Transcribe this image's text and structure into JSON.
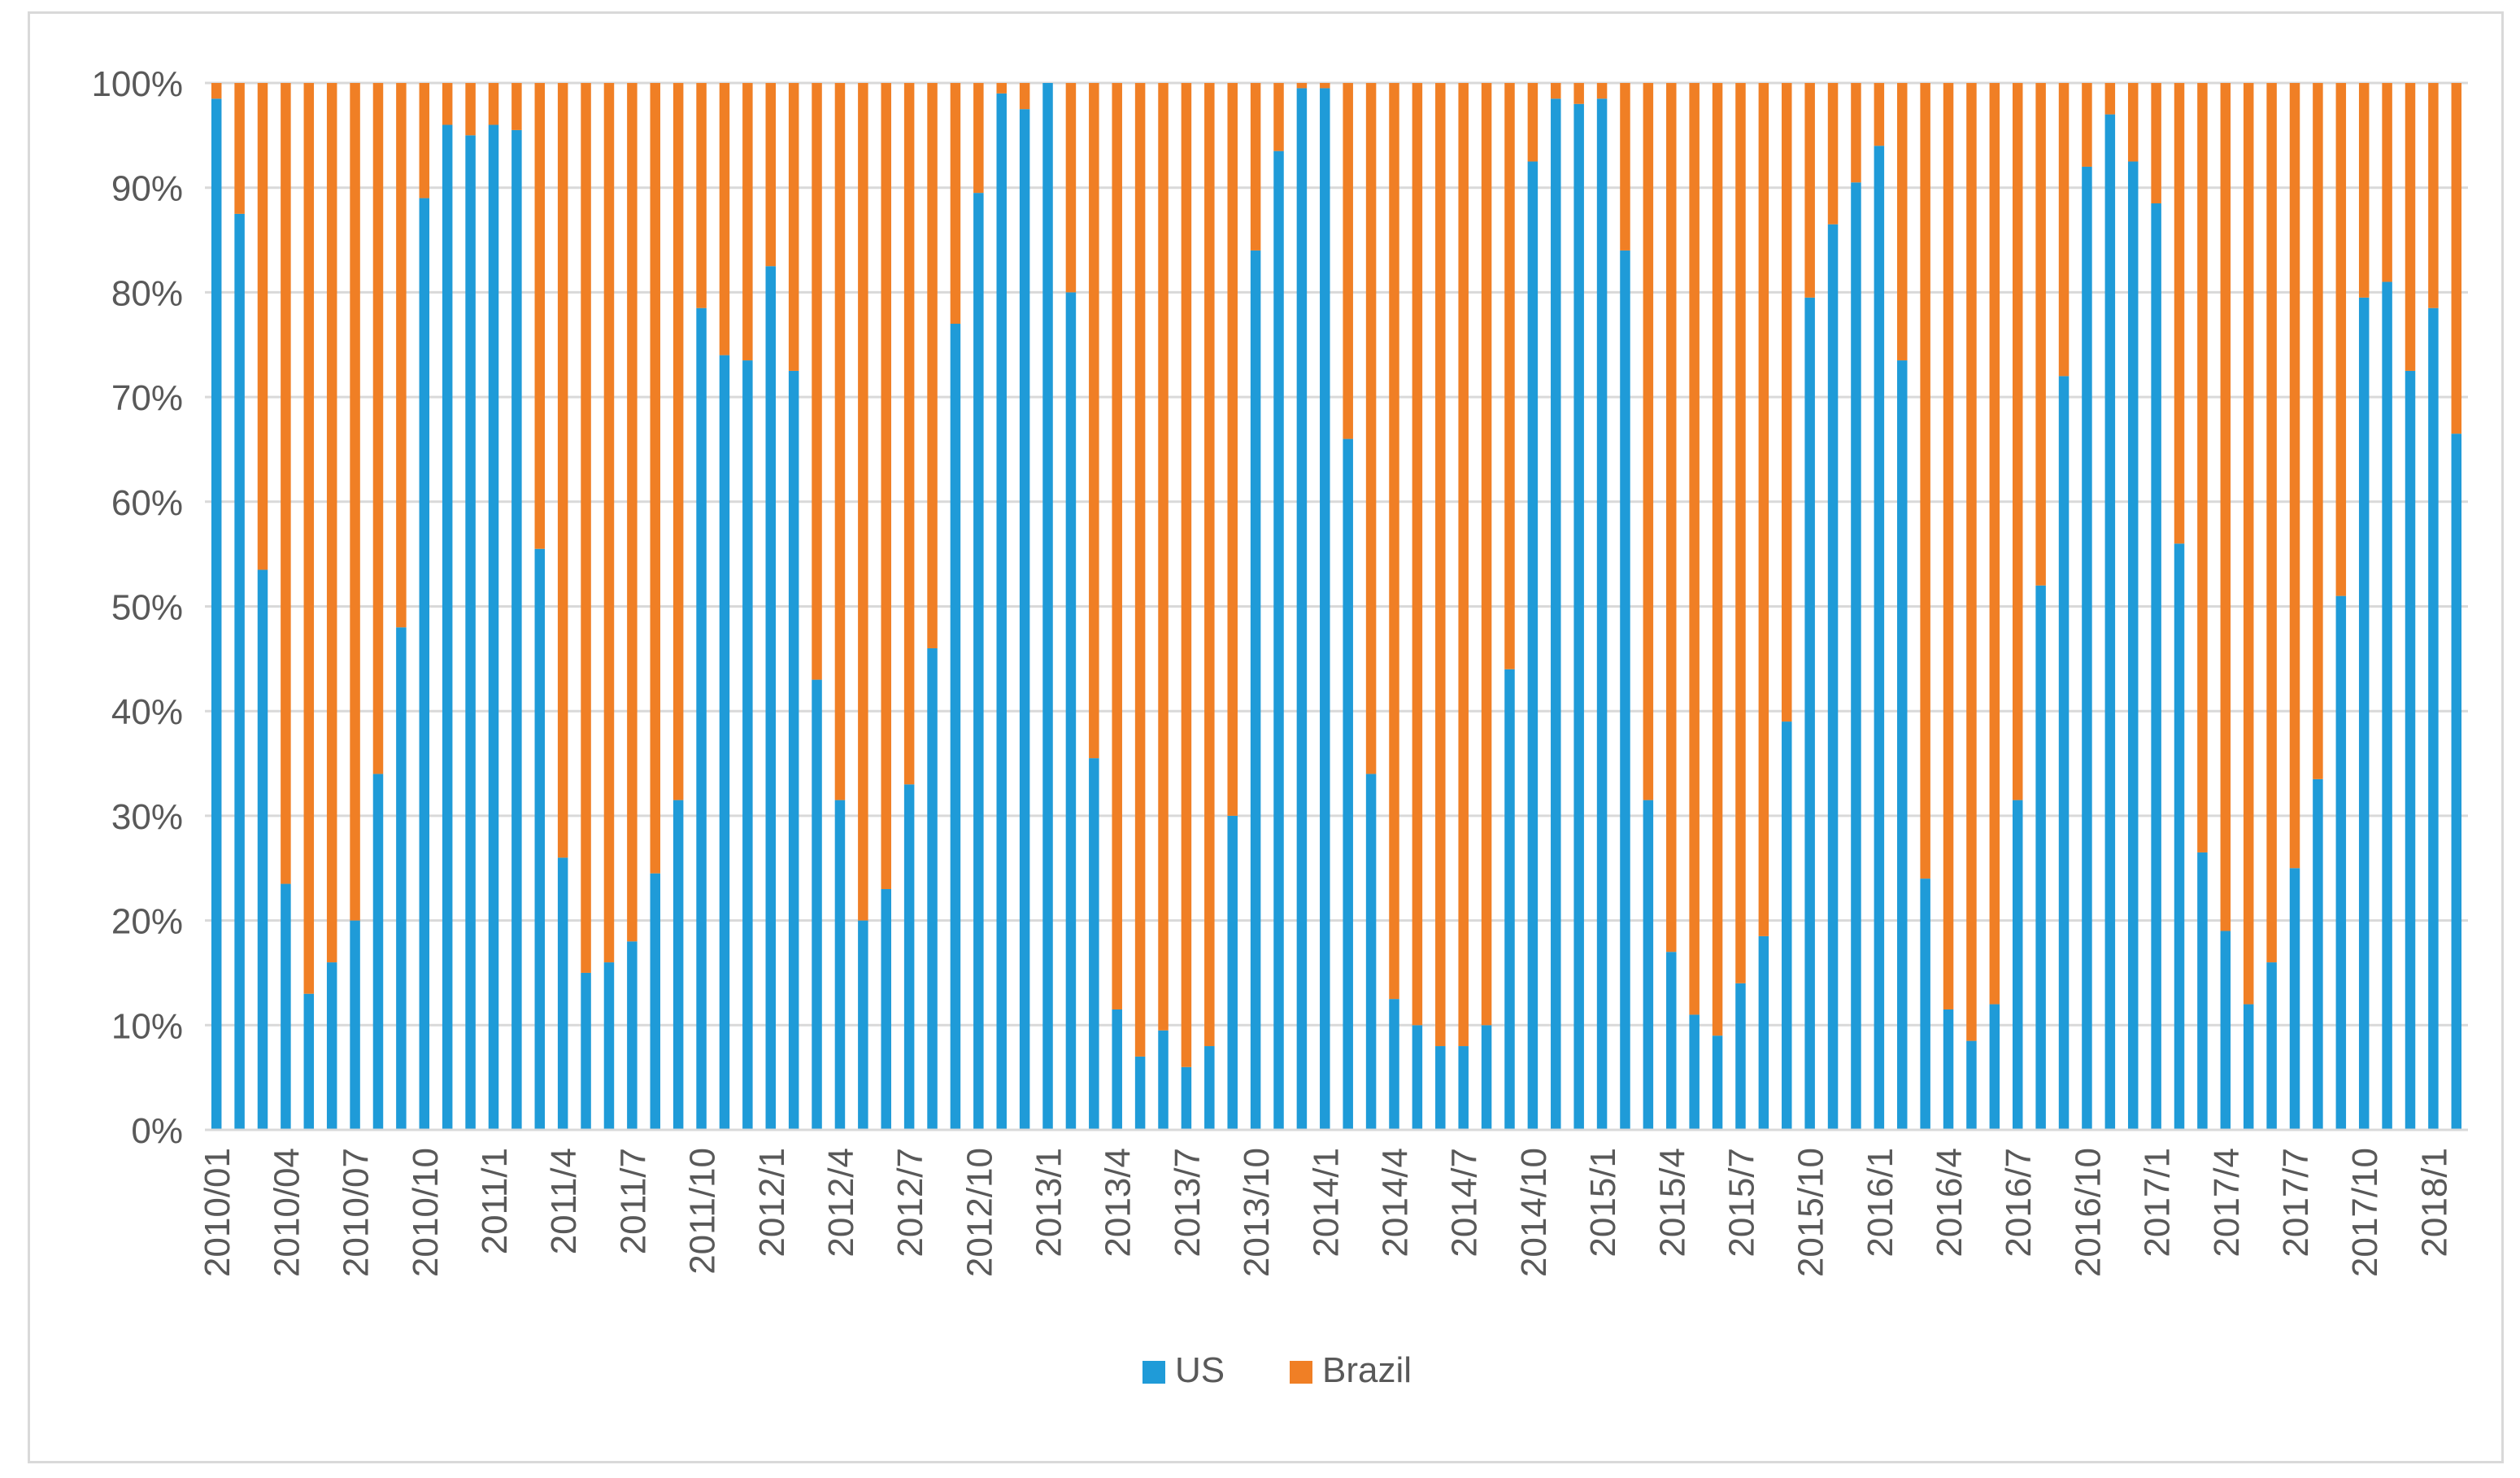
{
  "chart_data": {
    "type": "bar",
    "stacked": true,
    "percent_stacked": true,
    "title": "",
    "xlabel": "",
    "ylabel": "",
    "ylim": [
      0,
      100
    ],
    "y_ticks": [
      "0%",
      "10%",
      "20%",
      "30%",
      "40%",
      "50%",
      "60%",
      "70%",
      "80%",
      "90%",
      "100%"
    ],
    "grid": "horizontal",
    "legend_position": "bottom",
    "categories": [
      "2010/01",
      "2010/02",
      "2010/03",
      "2010/04",
      "2010/05",
      "2010/06",
      "2010/07",
      "2010/08",
      "2010/09",
      "2010/10",
      "2010/11",
      "2010/12",
      "2011/1",
      "2011/2",
      "2011/3",
      "2011/4",
      "2011/5",
      "2011/6",
      "2011/7",
      "2011/8",
      "2011/9",
      "2011/10",
      "2011/11",
      "2011/12",
      "2012/1",
      "2012/2",
      "2012/3",
      "2012/4",
      "2012/5",
      "2012/6",
      "2012/7",
      "2012/8",
      "2012/9",
      "2012/10",
      "2012/11",
      "2012/12",
      "2013/1",
      "2013/2",
      "2013/3",
      "2013/4",
      "2013/5",
      "2013/6",
      "2013/7",
      "2013/8",
      "2013/9",
      "2013/10",
      "2013/11",
      "2013/12",
      "2014/1",
      "2014/2",
      "2014/3",
      "2014/4",
      "2014/5",
      "2014/6",
      "2014/7",
      "2014/8",
      "2014/9",
      "2014/10",
      "2014/11",
      "2014/12",
      "2015/1",
      "2015/2",
      "2015/3",
      "2015/4",
      "2015/5",
      "2015/6",
      "2015/7",
      "2015/8",
      "2015/9",
      "2015/10",
      "2015/11",
      "2015/12",
      "2016/1",
      "2016/2",
      "2016/3",
      "2016/4",
      "2016/5",
      "2016/6",
      "2016/7",
      "2016/8",
      "2016/9",
      "2016/10",
      "2016/11",
      "2016/12",
      "2017/1",
      "2017/2",
      "2017/3",
      "2017/4",
      "2017/5",
      "2017/6",
      "2017/7",
      "2017/8",
      "2017/9",
      "2017/10",
      "2017/11",
      "2017/12",
      "2018/1",
      "2018/2"
    ],
    "x_tick_labels": [
      "2010/01",
      "2010/04",
      "2010/07",
      "2010/10",
      "2011/1",
      "2011/4",
      "2011/7",
      "2011/10",
      "2012/1",
      "2012/4",
      "2012/7",
      "2012/10",
      "2013/1",
      "2013/4",
      "2013/7",
      "2013/10",
      "2014/1",
      "2014/4",
      "2014/7",
      "2014/10",
      "2015/1",
      "2015/4",
      "2015/7",
      "2015/10",
      "2016/1",
      "2016/4",
      "2016/7",
      "2016/10",
      "2017/1",
      "2017/4",
      "2017/7",
      "2017/10",
      "2018/1"
    ],
    "series": [
      {
        "name": "US",
        "color": "#1f9bd8",
        "values": [
          98.5,
          87.5,
          53.5,
          23.5,
          13,
          16,
          20,
          34,
          48,
          89,
          96,
          95,
          96,
          95.5,
          55.5,
          26,
          15,
          16,
          18,
          24.5,
          31.5,
          78.5,
          74,
          73.5,
          82.5,
          72.5,
          43,
          31.5,
          20,
          23,
          33,
          46,
          77,
          89.5,
          99,
          97.5,
          100,
          80,
          35.5,
          11.5,
          7,
          9.5,
          6,
          8,
          30,
          84,
          93.5,
          99.5,
          99.5,
          66,
          34,
          12.5,
          10,
          8,
          8,
          10,
          44,
          92.5,
          98.5,
          98,
          98.5,
          84,
          31.5,
          17,
          11,
          9,
          14,
          18.5,
          39,
          79.5,
          86.5,
          90.5,
          94,
          73.5,
          24,
          11.5,
          8.5,
          12,
          31.5,
          52,
          72,
          92,
          97,
          92.5,
          88.5,
          56,
          26.5,
          19,
          12,
          16,
          25,
          33.5,
          51,
          79.5,
          81,
          72.5,
          78.5,
          66.5
        ]
      },
      {
        "name": "Brazil",
        "color": "#f07f25",
        "values": [
          1.5,
          12.5,
          46.5,
          76.5,
          87,
          84,
          80,
          66,
          52,
          11,
          4,
          5,
          4,
          4.5,
          44.5,
          74,
          85,
          84,
          82,
          75.5,
          68.5,
          21.5,
          26,
          26.5,
          17.5,
          27.5,
          57,
          68.5,
          80,
          77,
          67,
          54,
          23,
          10.5,
          1,
          2.5,
          0,
          20,
          64.5,
          88.5,
          93,
          90.5,
          94,
          92,
          70,
          16,
          6.5,
          0.5,
          0.5,
          34,
          66,
          87.5,
          90,
          92,
          92,
          90,
          56,
          7.5,
          1.5,
          2,
          1.5,
          16,
          68.5,
          83,
          89,
          91,
          86,
          81.5,
          61,
          20.5,
          13.5,
          9.5,
          6,
          26.5,
          76,
          88.5,
          91.5,
          88,
          68.5,
          48,
          28,
          8,
          3,
          7.5,
          11.5,
          44,
          73.5,
          81,
          88,
          84,
          75,
          66.5,
          49,
          20.5,
          19,
          27.5,
          21.5,
          33.5
        ]
      }
    ]
  }
}
